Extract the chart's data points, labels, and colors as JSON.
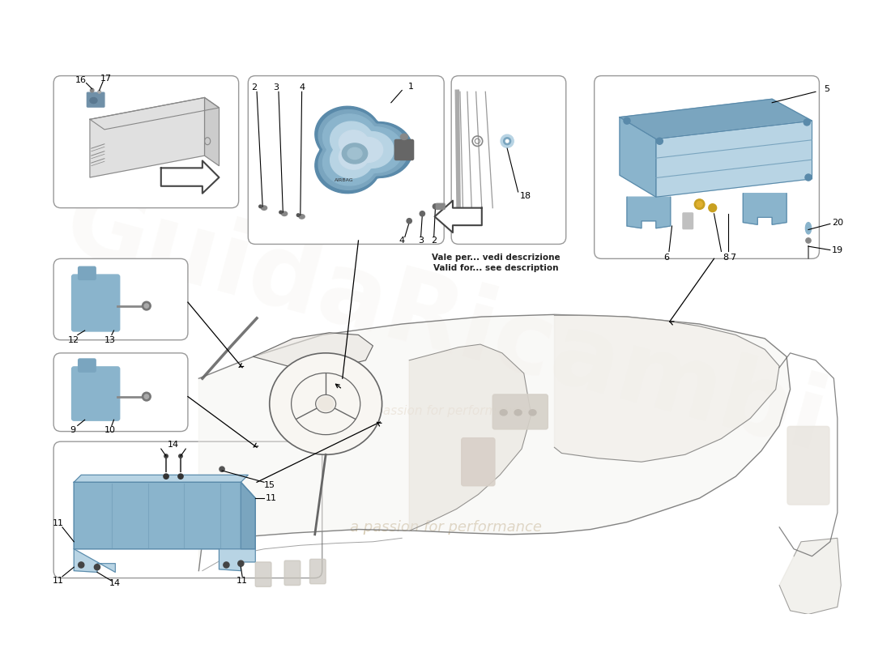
{
  "background_color": "#ffffff",
  "box_edge_color": "#999999",
  "blue": "#8ab4cc",
  "blue_mid": "#7aa5bf",
  "blue_dark": "#5a8aaa",
  "blue_light": "#b8d4e4",
  "gray_light": "#e8e8e8",
  "gray_mid": "#cccccc",
  "gray_dark": "#888888",
  "line_color": "#555555",
  "car_line": "#666666",
  "gold": "#c8a020",
  "note1": "Vale per... vedi descrizione",
  "note2": "Valid for... see description",
  "watermark": "a passion for performance",
  "box1_labels": [
    "16",
    "17"
  ],
  "box2_labels": [
    "1",
    "2",
    "3",
    "4"
  ],
  "box3_label": "18",
  "box4_labels": [
    "5",
    "6",
    "7",
    "8",
    "19",
    "20"
  ]
}
